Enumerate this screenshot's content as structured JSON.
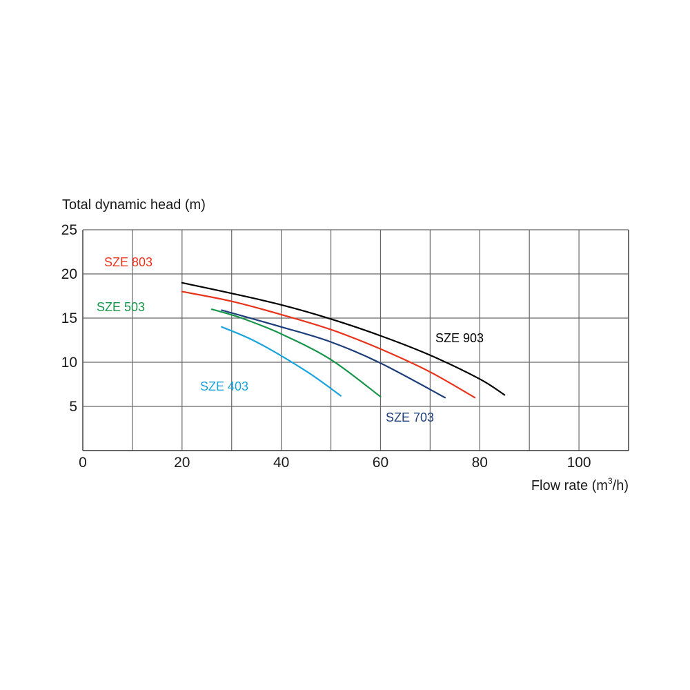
{
  "chart_data": {
    "type": "line",
    "title": "",
    "ylabel": "Total dynamic head (m)",
    "xlabel_main": "Flow rate (m",
    "xlabel_sup": "3",
    "xlabel_end": "/h)",
    "xlim": [
      0,
      110
    ],
    "ylim": [
      0,
      25
    ],
    "x_ticks": [
      0,
      20,
      40,
      60,
      80,
      100
    ],
    "x_tick_labels": [
      "0",
      "20",
      "40",
      "60",
      "80",
      "100"
    ],
    "y_ticks": [
      5,
      10,
      15,
      20,
      25
    ],
    "y_tick_labels": [
      "5",
      "10",
      "15",
      "20",
      "25"
    ],
    "grid": true,
    "series": [
      {
        "name": "SZE 903",
        "color": "#000000",
        "x": [
          20,
          30,
          40,
          50,
          60,
          70,
          80,
          85
        ],
        "y": [
          19,
          17.8,
          16.5,
          14.9,
          13.0,
          10.8,
          8.1,
          6.3
        ]
      },
      {
        "name": "SZE 803",
        "color": "#e8341c",
        "x": [
          20,
          30,
          40,
          50,
          60,
          70,
          79
        ],
        "y": [
          18,
          16.9,
          15.4,
          13.7,
          11.5,
          8.9,
          6.0
        ]
      },
      {
        "name": "SZE 703",
        "color": "#1d3e7a",
        "x": [
          28,
          40,
          50,
          60,
          73
        ],
        "y": [
          15.9,
          14.0,
          12.3,
          9.9,
          6.0
        ]
      },
      {
        "name": "SZE 503",
        "color": "#17954a",
        "x": [
          26,
          32,
          40,
          50,
          60
        ],
        "y": [
          16,
          15,
          13.2,
          10.3,
          6.1
        ]
      },
      {
        "name": "SZE 403",
        "color": "#1aa3dc",
        "x": [
          28,
          35,
          45,
          52
        ],
        "y": [
          14,
          12.3,
          9.0,
          6.2
        ]
      }
    ]
  }
}
